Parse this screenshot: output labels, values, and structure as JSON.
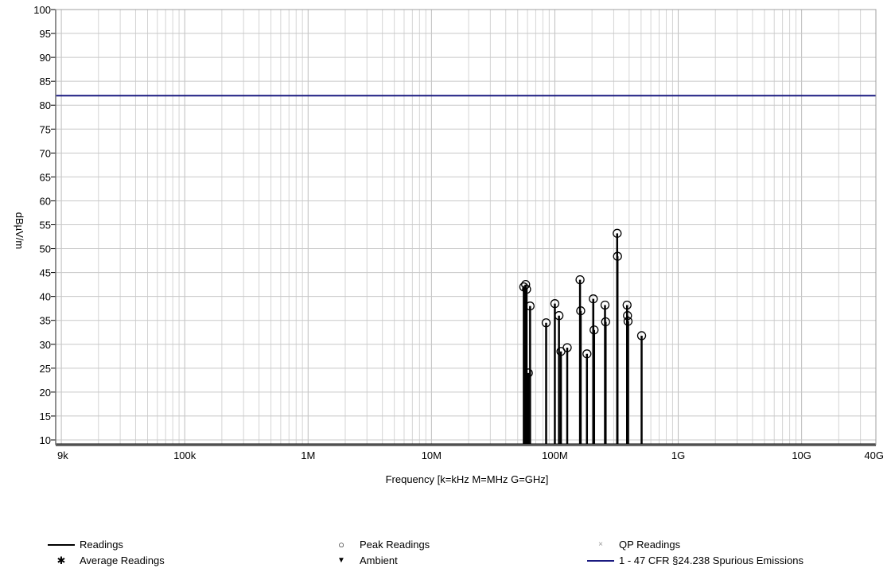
{
  "chart_data": {
    "type": "line",
    "xlabel": "Frequency [k=kHz M=MHz G=GHz]",
    "ylabel": "dBµV/m",
    "x_scale": "log",
    "xlim": [
      9000,
      40000000000
    ],
    "ylim": [
      9,
      100
    ],
    "x_ticks": [
      {
        "value": 9000,
        "label": "9k"
      },
      {
        "value": 100000,
        "label": "100k"
      },
      {
        "value": 1000000,
        "label": "1M"
      },
      {
        "value": 10000000,
        "label": "10M"
      },
      {
        "value": 100000000,
        "label": "100M"
      },
      {
        "value": 1000000000,
        "label": "1G"
      },
      {
        "value": 10000000000,
        "label": "10G"
      },
      {
        "value": 40000000000,
        "label": "40G"
      }
    ],
    "y_ticks": [
      10,
      15,
      20,
      25,
      30,
      35,
      40,
      45,
      50,
      55,
      60,
      65,
      70,
      75,
      80,
      85,
      90,
      95,
      100
    ],
    "grid": true,
    "legend_position": "bottom",
    "limit_line": {
      "name": "1 - 47 CFR §24.238 Spurious Emissions",
      "value": 82,
      "color": "#1a1a80"
    },
    "readings": [
      {
        "x": 56000000,
        "y": 42
      },
      {
        "x": 58000000,
        "y": 42.5
      },
      {
        "x": 59000000,
        "y": 41.5
      },
      {
        "x": 61000000,
        "y": 24
      },
      {
        "x": 63000000,
        "y": 38
      },
      {
        "x": 85000000,
        "y": 34.5
      },
      {
        "x": 100000000,
        "y": 38.5
      },
      {
        "x": 108000000,
        "y": 36
      },
      {
        "x": 112000000,
        "y": 28.5
      },
      {
        "x": 126000000,
        "y": 29.3
      },
      {
        "x": 160000000,
        "y": 43.5
      },
      {
        "x": 162000000,
        "y": 37
      },
      {
        "x": 182000000,
        "y": 28
      },
      {
        "x": 205000000,
        "y": 39.5
      },
      {
        "x": 208000000,
        "y": 33
      },
      {
        "x": 255000000,
        "y": 38.2
      },
      {
        "x": 258000000,
        "y": 34.7
      },
      {
        "x": 320000000,
        "y": 53.2
      },
      {
        "x": 322000000,
        "y": 48.4
      },
      {
        "x": 385000000,
        "y": 38.2
      },
      {
        "x": 388000000,
        "y": 36
      },
      {
        "x": 392000000,
        "y": 34.8
      },
      {
        "x": 505000000,
        "y": 31.8
      }
    ],
    "series_colors": {
      "readings": "#000000",
      "limit": "#1a1a80",
      "grid": "#d4d4d4",
      "plot_bg": "#ffffff"
    },
    "legend": [
      {
        "label": "Readings",
        "symbol": "line",
        "color": "#000000"
      },
      {
        "label": "Average Readings",
        "symbol": "asterisk",
        "color": "#000000"
      },
      {
        "label": "Peak Readings",
        "symbol": "circle",
        "color": "#000000"
      },
      {
        "label": "Ambient",
        "symbol": "triangle-down",
        "color": "#000000"
      },
      {
        "label": "QP Readings",
        "symbol": "x",
        "color": "#999999"
      },
      {
        "label": "1 - 47 CFR §24.238 Spurious Emissions",
        "symbol": "line",
        "color": "#1a1a80"
      }
    ]
  }
}
